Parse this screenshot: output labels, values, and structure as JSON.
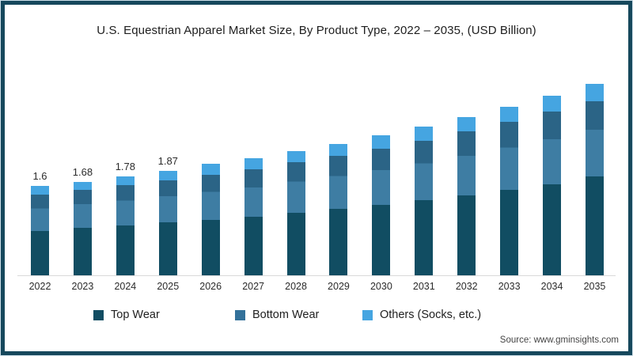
{
  "title": "U.S. Equestrian Apparel Market Size, By Product Type, 2022 – 2035, (USD Billion)",
  "source": "Source: www.gminsights.com",
  "colors": {
    "top_wear": "#114D62",
    "bottom_wear": "#33719A",
    "bottom_wear_upper_shade": "#2B6486",
    "bottom_wear_lower_shade": "#3E7DA3",
    "others": "#45A5E1",
    "frame_border": "#16485C",
    "axis_line": "#D9D9D9"
  },
  "legend": {
    "items": [
      {
        "label": "Top Wear",
        "color": "#114D62"
      },
      {
        "label": "Bottom Wear",
        "color": "#33719A"
      },
      {
        "label": "Others (Socks, etc.)",
        "color": "#45A5E1"
      }
    ]
  },
  "chart_data": {
    "type": "bar",
    "stacked": true,
    "title": "U.S. Equestrian Apparel Market Size, By Product Type, 2022 – 2035, (USD Billion)",
    "unit": "USD Billion",
    "xlabel": "",
    "ylabel": "",
    "grid": false,
    "legend_position": "bottom",
    "categories": [
      "2022",
      "2023",
      "2024",
      "2025",
      "2026",
      "2027",
      "2028",
      "2029",
      "2030",
      "2031",
      "2032",
      "2033",
      "2034",
      "2035"
    ],
    "series": [
      {
        "name": "Top Wear",
        "values": [
          0.8,
          0.85,
          0.9,
          0.95,
          1.0,
          1.05,
          1.12,
          1.2,
          1.26,
          1.35,
          1.44,
          1.53,
          1.64,
          1.78
        ]
      },
      {
        "name": "Bottom Wear",
        "values": [
          0.65,
          0.68,
          0.72,
          0.75,
          0.81,
          0.86,
          0.91,
          0.95,
          1.02,
          1.07,
          1.15,
          1.22,
          1.3,
          1.34
        ]
      },
      {
        "name": "Others (Socks, etc.)",
        "values": [
          0.15,
          0.15,
          0.16,
          0.17,
          0.19,
          0.2,
          0.2,
          0.21,
          0.24,
          0.25,
          0.25,
          0.27,
          0.28,
          0.32
        ]
      }
    ],
    "totals": [
      1.6,
      1.68,
      1.78,
      1.87,
      2.0,
      2.11,
      2.23,
      2.36,
      2.52,
      2.67,
      2.84,
      3.02,
      3.22,
      3.44
    ],
    "data_labels": {
      "2022": "1.6",
      "2023": "1.68",
      "2024": "1.78",
      "2025": "1.87"
    },
    "ylim": [
      0,
      3.8
    ]
  }
}
